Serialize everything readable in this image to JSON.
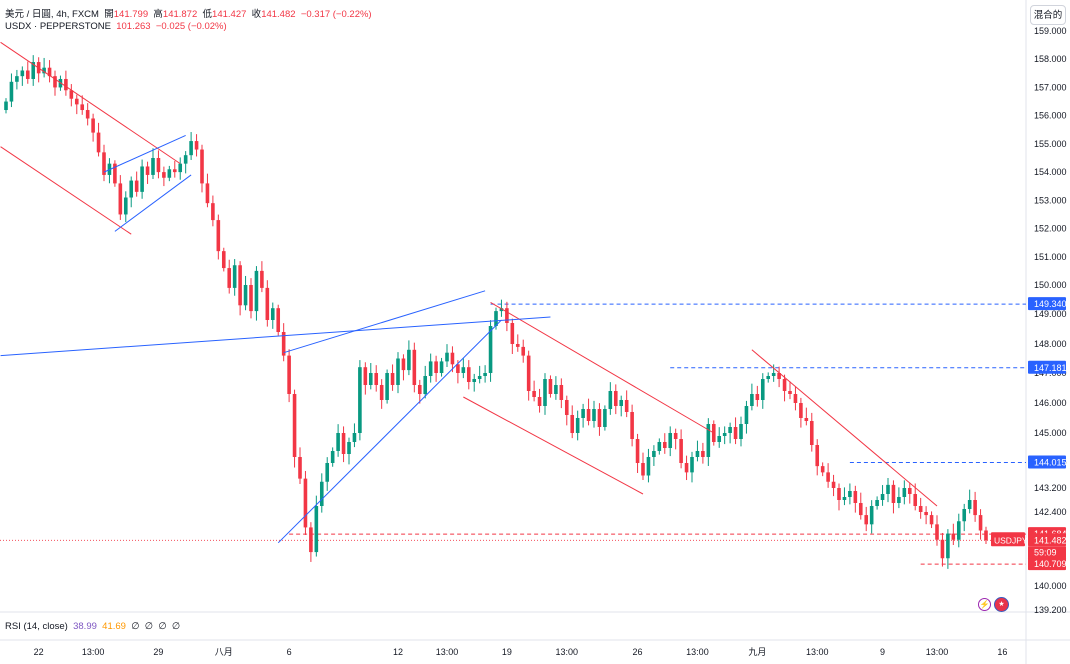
{
  "legend": {
    "symbol": "美元 / 日圓, 4h, FXCM",
    "open_label": "開",
    "open": "141.799",
    "high_label": "高",
    "high": "141.872",
    "low_label": "低",
    "low": "141.427",
    "close_label": "收",
    "close": "141.482",
    "change": "−0.317 (−0.22%)",
    "sub_symbol": "USDX · PEPPERSTONE",
    "sub_value": "101.263",
    "sub_change": "−0.025 (−0.02%)"
  },
  "toolbar": {
    "mode_button": "混合的"
  },
  "rsi": {
    "label": "RSI (14, close)",
    "v1": "38.99",
    "v2": "41.69",
    "v3": "∅",
    "v4": "∅",
    "v5": "∅",
    "v6": "∅"
  },
  "icons": {
    "flash": "lightning-icon",
    "flag": "us-flag-icon"
  },
  "colors": {
    "up": "#089981",
    "down": "#f23645",
    "blue": "#2962ff",
    "trend_red": "#f23645",
    "trend_blue": "#2962ff"
  },
  "chart_data": {
    "type": "candlestick",
    "symbol": "USDJPY",
    "y_ticks": [
      "159.000",
      "158.000",
      "157.000",
      "156.000",
      "155.000",
      "154.000",
      "153.000",
      "152.000",
      "151.000",
      "150.000",
      "149.000",
      "148.000",
      "147.000",
      "146.000",
      "145.000",
      "144.000",
      "143.200",
      "142.400",
      "140.000",
      "139.200"
    ],
    "x_ticks": [
      {
        "i": 6,
        "label": "22"
      },
      {
        "i": 16,
        "label": "13:00"
      },
      {
        "i": 28,
        "label": "29"
      },
      {
        "i": 40,
        "label": "八月"
      },
      {
        "i": 52,
        "label": "6"
      },
      {
        "i": 72,
        "label": "12"
      },
      {
        "i": 81,
        "label": "13:00"
      },
      {
        "i": 92,
        "label": "19"
      },
      {
        "i": 103,
        "label": "13:00"
      },
      {
        "i": 116,
        "label": "26"
      },
      {
        "i": 127,
        "label": "13:00"
      },
      {
        "i": 138,
        "label": "九月"
      },
      {
        "i": 149,
        "label": "13:00"
      },
      {
        "i": 161,
        "label": "9"
      },
      {
        "i": 171,
        "label": "13:00"
      },
      {
        "i": 183,
        "label": "16"
      }
    ],
    "y_range": [
      139.2,
      159.4
    ],
    "closes": [
      156.5,
      157.2,
      157.4,
      157.6,
      157.3,
      157.9,
      157.5,
      157.7,
      157.4,
      157.0,
      157.3,
      156.9,
      156.6,
      156.4,
      156.2,
      155.9,
      155.4,
      154.7,
      153.9,
      154.3,
      153.6,
      152.5,
      153.1,
      153.7,
      153.3,
      154.2,
      153.9,
      154.5,
      154.0,
      153.8,
      154.1,
      154.0,
      154.3,
      154.6,
      155.1,
      154.8,
      153.6,
      152.9,
      152.3,
      151.2,
      150.6,
      149.9,
      150.7,
      149.3,
      150.0,
      149.1,
      150.5,
      149.9,
      148.8,
      149.2,
      148.4,
      147.6,
      146.3,
      144.2,
      143.5,
      141.9,
      141.1,
      142.6,
      143.4,
      144.0,
      144.4,
      145.0,
      144.3,
      144.7,
      145.0,
      147.2,
      146.6,
      147.0,
      146.6,
      146.1,
      147.0,
      146.6,
      147.5,
      147.1,
      147.8,
      146.6,
      146.3,
      146.9,
      147.4,
      147.0,
      147.4,
      147.7,
      147.3,
      147.0,
      147.2,
      146.7,
      146.8,
      146.9,
      147.0,
      148.6,
      149.1,
      149.2,
      148.7,
      148.0,
      147.9,
      147.6,
      146.4,
      146.2,
      145.9,
      146.8,
      146.3,
      146.6,
      146.1,
      145.6,
      145.0,
      145.5,
      145.8,
      145.4,
      145.8,
      145.2,
      145.8,
      146.4,
      145.9,
      146.1,
      145.7,
      144.8,
      144.0,
      143.6,
      144.2,
      144.4,
      144.7,
      144.5,
      145.0,
      144.8,
      144.0,
      143.7,
      144.2,
      144.4,
      144.2,
      145.3,
      144.7,
      144.9,
      145.0,
      145.2,
      144.8,
      145.3,
      145.9,
      146.3,
      146.1,
      146.8,
      146.9,
      147.0,
      146.8,
      146.4,
      146.3,
      146.0,
      145.5,
      145.4,
      144.6,
      143.9,
      143.7,
      143.4,
      143.2,
      142.8,
      142.9,
      143.1,
      142.7,
      142.3,
      142.0,
      142.6,
      142.8,
      143.0,
      143.3,
      142.7,
      142.9,
      143.2,
      143.0,
      142.6,
      142.4,
      142.3,
      142.0,
      141.5,
      140.9,
      141.7,
      141.5,
      142.1,
      142.5,
      142.8,
      142.3,
      141.8,
      141.482
    ],
    "trendlines_red": [
      [
        -1,
        158.6,
        32,
        154.3
      ],
      [
        -1,
        154.9,
        23,
        151.8
      ],
      [
        89,
        149.4,
        130,
        145.0
      ],
      [
        84,
        146.2,
        117,
        143.0
      ],
      [
        137,
        147.8,
        171,
        142.6
      ]
    ],
    "trendlines_blue": [
      [
        -1,
        147.6,
        100,
        148.9
      ],
      [
        18,
        154.0,
        33,
        155.3
      ],
      [
        20,
        151.9,
        34,
        153.9
      ],
      [
        50,
        141.4,
        91,
        148.8
      ],
      [
        51,
        147.7,
        88,
        149.8
      ]
    ],
    "hlines": [
      {
        "y": 149.34,
        "color": "#2962ff",
        "from": 89
      },
      {
        "y": 147.181,
        "color": "#2962ff",
        "from": 122
      },
      {
        "y": 144.015,
        "color": "#2962ff",
        "from": 155
      },
      {
        "y": 141.684,
        "color": "#f23645",
        "from": 52
      },
      {
        "y": 140.709,
        "color": "#f23645",
        "from": 168
      }
    ],
    "price_labels": [
      {
        "y": 149.34,
        "text": "149.340",
        "color": "#2962ff"
      },
      {
        "y": 147.181,
        "text": "147.181",
        "color": "#2962ff"
      },
      {
        "y": 144.015,
        "text": "144.015",
        "color": "#2962ff"
      },
      {
        "y": 141.684,
        "text": "141.684",
        "color": "#f23645"
      },
      {
        "y": 141.482,
        "text": "141.482",
        "color": "#f23645"
      },
      {
        "y": 140.709,
        "text": "140.709",
        "color": "#f23645"
      }
    ],
    "symbol_tag": "USDJPY",
    "countdown": "59:09"
  }
}
